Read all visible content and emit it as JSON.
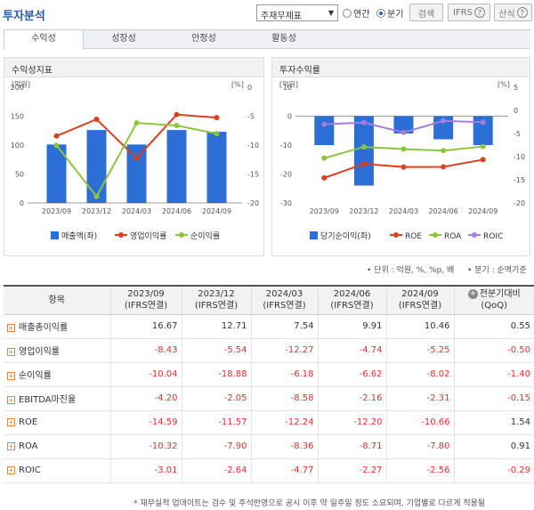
{
  "header": {
    "title": "투자분석",
    "select_value": "주재무제표",
    "radio_annual": "연간",
    "radio_quarter": "분기",
    "btn_search": "검색",
    "btn_ifrs": "IFRS",
    "btn_formula": "산식"
  },
  "tabs": [
    {
      "label": "수익성"
    },
    {
      "label": "성장성"
    },
    {
      "label": "안정성"
    },
    {
      "label": "활동성"
    }
  ],
  "left_panel": {
    "title": "수익성지표"
  },
  "right_panel": {
    "title": "투자수익률"
  },
  "chart_data": [
    {
      "type": "bar+line",
      "left_unit": "[억원]",
      "right_unit": "[%]",
      "categories": [
        "2023/09",
        "2023/12",
        "2024/03",
        "2024/06",
        "2024/09"
      ],
      "ylim_left": [
        0,
        200
      ],
      "yticks_left": [
        0,
        50,
        100,
        150,
        200
      ],
      "ylim_right": [
        -20,
        0
      ],
      "yticks_right": [
        0,
        -5,
        -10,
        -15,
        -20
      ],
      "series": [
        {
          "name": "매출액(좌)",
          "type": "bar",
          "axis": "left",
          "color": "#2b6fd6",
          "values": [
            101,
            126,
            101,
            126,
            123
          ]
        },
        {
          "name": "영업이익률",
          "type": "line",
          "axis": "right",
          "color": "#d8401e",
          "values": [
            -8.43,
            -5.54,
            -12.27,
            -4.74,
            -5.25
          ]
        },
        {
          "name": "순이익률",
          "type": "line",
          "axis": "right",
          "color": "#8cc63f",
          "values": [
            -10.04,
            -18.88,
            -6.18,
            -6.62,
            -8.02
          ]
        }
      ]
    },
    {
      "type": "bar+line",
      "left_unit": "[억원]",
      "right_unit": "[%]",
      "categories": [
        "2023/09",
        "2023/12",
        "2024/03",
        "2024/06",
        "2024/09"
      ],
      "ylim_left": [
        -30,
        10
      ],
      "yticks_left": [
        10,
        0,
        -10,
        -20,
        -30
      ],
      "ylim_right": [
        -20,
        5
      ],
      "yticks_right": [
        5,
        0,
        -5,
        -10,
        -15,
        -20
      ],
      "series": [
        {
          "name": "당기순이익(좌)",
          "type": "bar",
          "axis": "left",
          "color": "#2b6fd6",
          "values": [
            -10,
            -24,
            -6,
            -8,
            -10
          ]
        },
        {
          "name": "ROE",
          "type": "line",
          "axis": "right",
          "color": "#d8401e",
          "values": [
            -14.59,
            -11.57,
            -12.24,
            -12.2,
            -10.66
          ]
        },
        {
          "name": "ROA",
          "type": "line",
          "axis": "right",
          "color": "#8cc63f",
          "values": [
            -10.32,
            -7.9,
            -8.36,
            -8.71,
            -7.8
          ]
        },
        {
          "name": "ROIC",
          "type": "line",
          "axis": "right",
          "color": "#a27ee0",
          "values": [
            -3.01,
            -2.64,
            -4.77,
            -2.27,
            -2.56
          ]
        }
      ]
    }
  ],
  "units_note": "• 단위 : 억원, %, %p, 배",
  "quarter_note": "• 분기 : 순액기준",
  "table": {
    "header_item": "항목",
    "columns": [
      {
        "period": "2023/09",
        "sub": "(IFRS연결)"
      },
      {
        "period": "2023/12",
        "sub": "(IFRS연결)"
      },
      {
        "period": "2024/03",
        "sub": "(IFRS연결)"
      },
      {
        "period": "2024/06",
        "sub": "(IFRS연결)"
      },
      {
        "period": "2024/09",
        "sub": "(IFRS연결)"
      }
    ],
    "last_col": {
      "label": "전분기대비",
      "sub": "(QoQ)"
    },
    "rows": [
      {
        "label": "매출총이익률",
        "values": [
          "16.67",
          "12.71",
          "7.54",
          "9.91",
          "10.46"
        ],
        "qoq": "0.55"
      },
      {
        "label": "영업이익률",
        "values": [
          "-8.43",
          "-5.54",
          "-12.27",
          "-4.74",
          "-5.25"
        ],
        "qoq": "-0.50"
      },
      {
        "label": "순이익률",
        "values": [
          "-10.04",
          "-18.88",
          "-6.18",
          "-6.62",
          "-8.02"
        ],
        "qoq": "-1.40"
      },
      {
        "label": "EBITDA마진율",
        "values": [
          "-4.20",
          "-2.05",
          "-8.58",
          "-2.16",
          "-2.31"
        ],
        "qoq": "-0.15"
      },
      {
        "label": "ROE",
        "values": [
          "-14.59",
          "-11.57",
          "-12.24",
          "-12.20",
          "-10.66"
        ],
        "qoq": "1.54"
      },
      {
        "label": "ROA",
        "values": [
          "-10.32",
          "-7.90",
          "-8.36",
          "-8.71",
          "-7.80"
        ],
        "qoq": "0.91"
      },
      {
        "label": "ROIC",
        "values": [
          "-3.01",
          "-2.64",
          "-4.77",
          "-2.27",
          "-2.56"
        ],
        "qoq": "-0.29"
      }
    ]
  },
  "footnote": "* 재무실적 업데이트는 검수 및 주석반영으로 공시 이후 약 일주일 정도 소요되며, 기업별로 다르게 적용될"
}
